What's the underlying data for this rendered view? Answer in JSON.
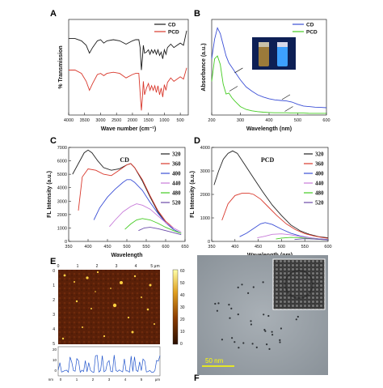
{
  "panels": [
    "A",
    "B",
    "C",
    "D",
    "E",
    "F"
  ],
  "afm_scalebar": [
    "60",
    "50",
    "40",
    "30",
    "20",
    "10",
    "0"
  ],
  "afm_xticks": [
    "0",
    "1",
    "2",
    "3",
    "4",
    "5 μm"
  ],
  "afm_yticks": [
    "0",
    "1",
    "2",
    "3",
    "4",
    "5"
  ],
  "afm_profile_yticks": [
    "20",
    "10",
    "0"
  ],
  "afm_profile_xticks": [
    "0",
    "1",
    "2",
    "3",
    "4",
    "5",
    "μm"
  ],
  "afm_profile_unit": "nm",
  "tem_scalebar": "50 nm",
  "inset_labels": [
    "CD",
    "PCD"
  ],
  "chart_data": [
    {
      "panel": "A",
      "type": "line",
      "xlabel": "Wave number (cm⁻¹)",
      "ylabel": "% Transmission",
      "xlim": [
        4000,
        250
      ],
      "x_ticks": [
        4000,
        3500,
        3000,
        2500,
        2000,
        1500,
        1000,
        500
      ],
      "series": [
        {
          "name": "CD",
          "color": "#1a1a1a",
          "x": [
            4000,
            3800,
            3600,
            3450,
            3350,
            3250,
            3100,
            3000,
            2900,
            2800,
            2600,
            2400,
            2200,
            2000,
            1900,
            1800,
            1760,
            1720,
            1690,
            1660,
            1620,
            1560,
            1500,
            1450,
            1400,
            1350,
            1300,
            1250,
            1200,
            1150,
            1100,
            1050,
            1000,
            950,
            900,
            800,
            700,
            600,
            500,
            400,
            300
          ],
          "y": [
            0.68,
            0.68,
            0.66,
            0.62,
            0.55,
            0.6,
            0.66,
            0.67,
            0.64,
            0.66,
            0.67,
            0.66,
            0.63,
            0.66,
            0.67,
            0.67,
            0.6,
            0.4,
            0.5,
            0.62,
            0.55,
            0.56,
            0.58,
            0.54,
            0.58,
            0.55,
            0.58,
            0.54,
            0.58,
            0.53,
            0.56,
            0.5,
            0.58,
            0.54,
            0.6,
            0.63,
            0.6,
            0.62,
            0.64,
            0.62,
            0.75
          ]
        },
        {
          "name": "PCD",
          "color": "#d9382c",
          "x": [
            4000,
            3800,
            3600,
            3450,
            3350,
            3250,
            3100,
            3000,
            2900,
            2800,
            2600,
            2400,
            2200,
            2000,
            1900,
            1800,
            1760,
            1720,
            1690,
            1660,
            1620,
            1560,
            1500,
            1450,
            1400,
            1350,
            1300,
            1250,
            1200,
            1150,
            1100,
            1050,
            1000,
            950,
            900,
            800,
            700,
            600,
            500,
            400,
            300
          ],
          "y": [
            0.4,
            0.4,
            0.37,
            0.3,
            0.22,
            0.28,
            0.36,
            0.37,
            0.35,
            0.37,
            0.38,
            0.37,
            0.33,
            0.36,
            0.37,
            0.37,
            0.2,
            0.04,
            0.15,
            0.3,
            0.18,
            0.24,
            0.28,
            0.22,
            0.26,
            0.22,
            0.26,
            0.2,
            0.26,
            0.18,
            0.24,
            0.16,
            0.27,
            0.22,
            0.29,
            0.33,
            0.3,
            0.32,
            0.34,
            0.32,
            0.42
          ]
        }
      ],
      "legend": "top-right"
    },
    {
      "panel": "B",
      "type": "line",
      "xlabel": "Wavelength (nm)",
      "ylabel": "Absorbance (a.u.)",
      "xlim": [
        200,
        600
      ],
      "x_ticks": [
        200,
        300,
        400,
        500,
        600
      ],
      "series": [
        {
          "name": "CD",
          "color": "#3b4fd6",
          "x": [
            200,
            210,
            220,
            230,
            240,
            250,
            260,
            270,
            280,
            300,
            320,
            340,
            360,
            380,
            400,
            420,
            440,
            460,
            480,
            500,
            520,
            540,
            560,
            580,
            600
          ],
          "y": [
            2.0,
            2.7,
            3.1,
            2.9,
            2.5,
            2.1,
            1.85,
            1.7,
            1.55,
            1.25,
            1.0,
            0.85,
            0.72,
            0.64,
            0.58,
            0.54,
            0.52,
            0.5,
            0.46,
            0.38,
            0.32,
            0.3,
            0.28,
            0.27,
            0.26
          ]
        },
        {
          "name": "PCD",
          "color": "#44cc22",
          "x": [
            200,
            210,
            220,
            230,
            240,
            250,
            260,
            270,
            280,
            300,
            320,
            340,
            360,
            380,
            400,
            420,
            440,
            460,
            480,
            500,
            520,
            540,
            560,
            580,
            600
          ],
          "y": [
            1.2,
            2.0,
            2.1,
            1.8,
            1.1,
            0.75,
            0.78,
            0.62,
            0.5,
            0.3,
            0.2,
            0.15,
            0.12,
            0.1,
            0.09,
            0.08,
            0.08,
            0.08,
            0.07,
            0.07,
            0.07,
            0.06,
            0.06,
            0.06,
            0.06
          ]
        }
      ],
      "legend": "top-right"
    },
    {
      "panel": "C",
      "type": "line",
      "title": "CD",
      "xlabel": "Wavelength",
      "ylabel": "FL Intensity (a.u.)",
      "xlim": [
        350,
        650
      ],
      "ylim": [
        0,
        7000
      ],
      "x_ticks": [
        350,
        400,
        450,
        500,
        550,
        600,
        650
      ],
      "y_ticks": [
        0,
        1000,
        2000,
        3000,
        4000,
        5000,
        6000,
        7000
      ],
      "series": [
        {
          "name": "320",
          "color": "#222222",
          "x": [
            360,
            375,
            390,
            400,
            410,
            425,
            440,
            460,
            480,
            500,
            510,
            520,
            540,
            560,
            580,
            600,
            620
          ],
          "y": [
            5000,
            5800,
            6600,
            6800,
            6600,
            6000,
            5500,
            5300,
            5400,
            5700,
            5800,
            5500,
            4500,
            3300,
            2200,
            1400,
            900
          ]
        },
        {
          "name": "360",
          "color": "#d9382c",
          "x": [
            375,
            385,
            400,
            420,
            440,
            460,
            480,
            500,
            510,
            520,
            540,
            560,
            580,
            600,
            620
          ],
          "y": [
            2300,
            4800,
            5400,
            5300,
            5000,
            4900,
            5300,
            5700,
            5800,
            5500,
            4600,
            3400,
            2300,
            1500,
            1000
          ]
        },
        {
          "name": "400",
          "color": "#3b4fd6",
          "x": [
            415,
            430,
            450,
            470,
            490,
            500,
            510,
            520,
            540,
            560,
            580,
            600,
            620,
            640
          ],
          "y": [
            1600,
            2500,
            3300,
            3900,
            4400,
            4600,
            4600,
            4400,
            3800,
            2900,
            2100,
            1400,
            900,
            600
          ]
        },
        {
          "name": "440",
          "color": "#c77ad9",
          "x": [
            455,
            470,
            490,
            510,
            525,
            540,
            560,
            580,
            600,
            620,
            640
          ],
          "y": [
            1100,
            1600,
            2200,
            2600,
            2800,
            2700,
            2400,
            1900,
            1400,
            1000,
            700
          ]
        },
        {
          "name": "480",
          "color": "#44cc22",
          "x": [
            495,
            510,
            525,
            540,
            560,
            580,
            600,
            620,
            640
          ],
          "y": [
            900,
            1300,
            1600,
            1700,
            1600,
            1350,
            1050,
            800,
            600
          ]
        },
        {
          "name": "520",
          "color": "#6a4aa8",
          "x": [
            530,
            545,
            560,
            580,
            600,
            620,
            640
          ],
          "y": [
            800,
            1000,
            1050,
            950,
            800,
            650,
            500
          ]
        }
      ],
      "legend": "right"
    },
    {
      "panel": "D",
      "type": "line",
      "title": "PCD",
      "xlabel": "Wavelength (nm)",
      "ylabel": "FL Intensity (a.u.)",
      "xlim": [
        350,
        600
      ],
      "ylim": [
        0,
        4000
      ],
      "x_ticks": [
        350,
        400,
        450,
        500,
        550,
        600
      ],
      "y_ticks": [
        0,
        1000,
        2000,
        3000,
        4000
      ],
      "series": [
        {
          "name": "320",
          "color": "#222222",
          "x": [
            355,
            365,
            375,
            385,
            395,
            405,
            420,
            440,
            460,
            480,
            500,
            520,
            540,
            560,
            580,
            600
          ],
          "y": [
            2400,
            3000,
            3500,
            3750,
            3850,
            3750,
            3300,
            2700,
            2100,
            1550,
            1100,
            700,
            450,
            300,
            200,
            150
          ]
        },
        {
          "name": "360",
          "color": "#d9382c",
          "x": [
            372,
            385,
            400,
            415,
            430,
            440,
            455,
            470,
            490,
            510,
            530,
            550,
            570,
            590,
            600
          ],
          "y": [
            900,
            1600,
            1950,
            2050,
            2050,
            2000,
            1800,
            1500,
            1100,
            750,
            500,
            330,
            230,
            160,
            130
          ]
        },
        {
          "name": "400",
          "color": "#3b4fd6",
          "x": [
            410,
            425,
            440,
            455,
            465,
            480,
            500,
            520,
            540,
            560,
            580,
            600
          ],
          "y": [
            200,
            350,
            550,
            750,
            800,
            720,
            520,
            350,
            230,
            160,
            110,
            80
          ]
        },
        {
          "name": "440",
          "color": "#c77ad9",
          "x": [
            448,
            465,
            480,
            500,
            520,
            540,
            560,
            580,
            600
          ],
          "y": [
            150,
            220,
            300,
            320,
            280,
            210,
            150,
            100,
            70
          ]
        },
        {
          "name": "480",
          "color": "#44cc22",
          "x": [
            488,
            500,
            520,
            540,
            560,
            580,
            600
          ],
          "y": [
            100,
            140,
            170,
            160,
            120,
            90,
            60
          ]
        },
        {
          "name": "520",
          "color": "#6a4aa8",
          "x": [
            528,
            545,
            560,
            580,
            600
          ],
          "y": [
            80,
            110,
            110,
            90,
            60
          ]
        }
      ],
      "legend": "right"
    }
  ]
}
